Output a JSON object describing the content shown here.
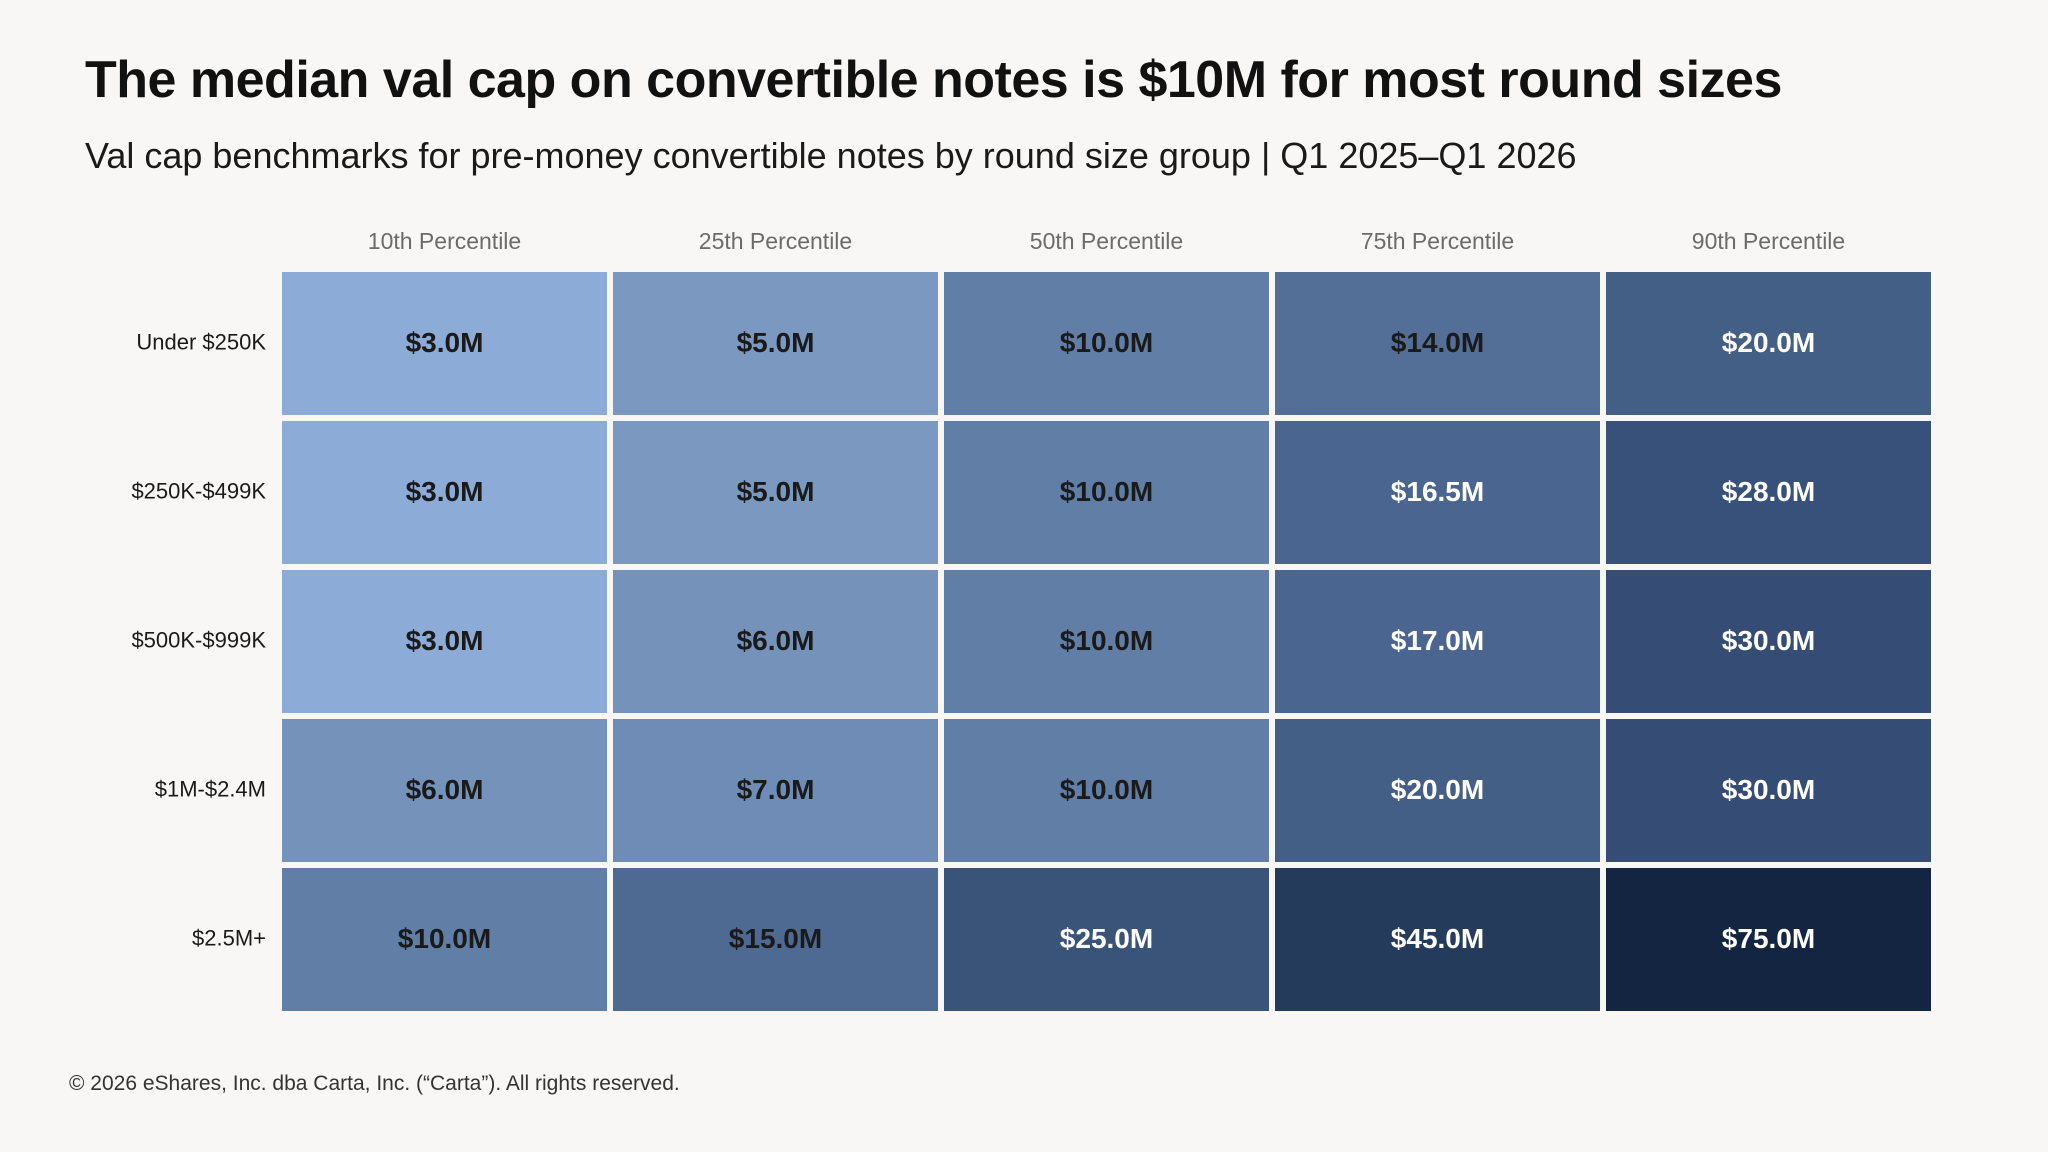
{
  "header": {
    "title": "The median val cap on convertible notes is $10M for most round sizes",
    "subtitle": "Val cap benchmarks for pre-money convertible notes by round size group | Q1 2025–Q1 2026"
  },
  "footer": {
    "copyright": "© 2026 eShares, Inc. dba Carta, Inc. (“Carta”). All rights reserved."
  },
  "chart_data": {
    "type": "heatmap",
    "title": "The median val cap on convertible notes is $10M for most round sizes",
    "subtitle": "Val cap benchmarks for pre-money convertible notes by round size group | Q1 2025–Q1 2026",
    "columns": [
      "10th Percentile",
      "25th Percentile",
      "50th Percentile",
      "75th Percentile",
      "90th Percentile"
    ],
    "rows": [
      "Under $250K",
      "$250K-$499K",
      "$500K-$999K",
      "$1M-$2.4M",
      "$2.5M+"
    ],
    "values": [
      [
        3.0,
        5.0,
        10.0,
        14.0,
        20.0
      ],
      [
        3.0,
        5.0,
        10.0,
        16.5,
        28.0
      ],
      [
        3.0,
        6.0,
        10.0,
        17.0,
        30.0
      ],
      [
        6.0,
        7.0,
        10.0,
        20.0,
        30.0
      ],
      [
        10.0,
        15.0,
        25.0,
        45.0,
        75.0
      ]
    ],
    "labels": [
      [
        "$3.0M",
        "$5.0M",
        "$10.0M",
        "$14.0M",
        "$20.0M"
      ],
      [
        "$3.0M",
        "$5.0M",
        "$10.0M",
        "$16.5M",
        "$28.0M"
      ],
      [
        "$3.0M",
        "$6.0M",
        "$10.0M",
        "$17.0M",
        "$30.0M"
      ],
      [
        "$6.0M",
        "$7.0M",
        "$10.0M",
        "$20.0M",
        "$30.0M"
      ],
      [
        "$10.0M",
        "$15.0M",
        "$25.0M",
        "$45.0M",
        "$75.0M"
      ]
    ],
    "cell_colors": [
      [
        "#8cabd6",
        "#7b98c1",
        "#617ea6",
        "#536e97",
        "#445f86"
      ],
      [
        "#8cabd6",
        "#7b98c1",
        "#617ea6",
        "#4a6690",
        "#37517a"
      ],
      [
        "#8cabd6",
        "#7592bb",
        "#617ea6",
        "#4a6690",
        "#354d74"
      ],
      [
        "#7592bb",
        "#6e8cb5",
        "#617ea6",
        "#445f86",
        "#354d74"
      ],
      [
        "#617ea6",
        "#4f6a92",
        "#3a5479",
        "#253b5c",
        "#142541"
      ]
    ],
    "label_colors": [
      [
        "#1a1a1a",
        "#1a1a1a",
        "#1a1a1a",
        "#1a1a1a",
        "#ffffff"
      ],
      [
        "#1a1a1a",
        "#1a1a1a",
        "#1a1a1a",
        "#ffffff",
        "#ffffff"
      ],
      [
        "#1a1a1a",
        "#1a1a1a",
        "#1a1a1a",
        "#ffffff",
        "#ffffff"
      ],
      [
        "#1a1a1a",
        "#1a1a1a",
        "#1a1a1a",
        "#ffffff",
        "#ffffff"
      ],
      [
        "#1a1a1a",
        "#1a1a1a",
        "#ffffff",
        "#ffffff",
        "#ffffff"
      ]
    ]
  }
}
